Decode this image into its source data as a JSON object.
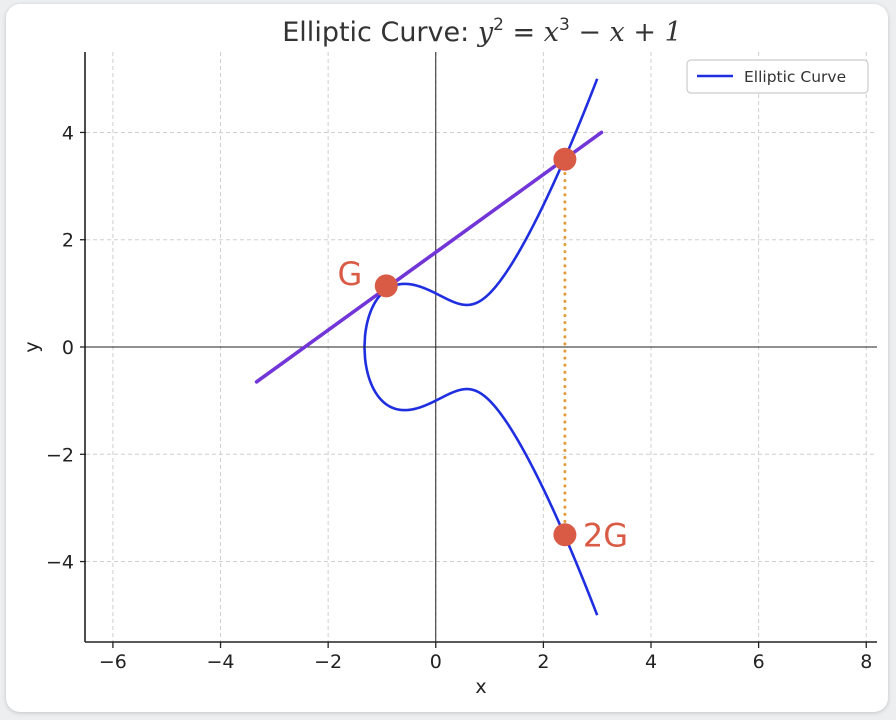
{
  "chart_data": {
    "type": "line",
    "title_text": "Elliptic Curve: ",
    "title_math": {
      "y": "y",
      "exp2": "2",
      "eq": " = ",
      "x": "x",
      "exp3": "3",
      "rest": " − x + 1"
    },
    "xlabel": "x",
    "ylabel": "y",
    "xlim": [
      -6.5,
      8.2
    ],
    "ylim": [
      -5.5,
      5.5
    ],
    "x_ticks": [
      -6,
      -4,
      -2,
      0,
      2,
      4,
      6,
      8
    ],
    "y_ticks": [
      -4,
      -2,
      0,
      2,
      4
    ],
    "x_tick_labels": [
      "−6",
      "−4",
      "−2",
      "0",
      "2",
      "4",
      "6",
      "8"
    ],
    "y_tick_labels": [
      "−4",
      "−2",
      "0",
      "2",
      "4"
    ],
    "grid": true,
    "legend_position": "top-right",
    "series": [
      {
        "name": "Elliptic Curve",
        "equation": "y^2 = x^3 - x + 1",
        "x_range": [
          -1.3247,
          3.0
        ],
        "color": "#1f2fe0"
      }
    ],
    "tangent_line": {
      "points": [
        [
          -3.33,
          -0.65
        ],
        [
          3.08,
          4.0
        ]
      ],
      "color": "#7236d8"
    },
    "reflection_line": {
      "x": 2.4,
      "y_from": 3.5,
      "y_to": -3.5,
      "color": "#e39b3a",
      "style": "dotted"
    },
    "points": [
      {
        "label": "G",
        "x": -0.92,
        "y": 1.14
      },
      {
        "label": "",
        "x": 2.4,
        "y": 3.5
      },
      {
        "label": "2G",
        "x": 2.4,
        "y": -3.5
      }
    ],
    "point_color": "#d95b45",
    "label_color": "#d95b45"
  }
}
